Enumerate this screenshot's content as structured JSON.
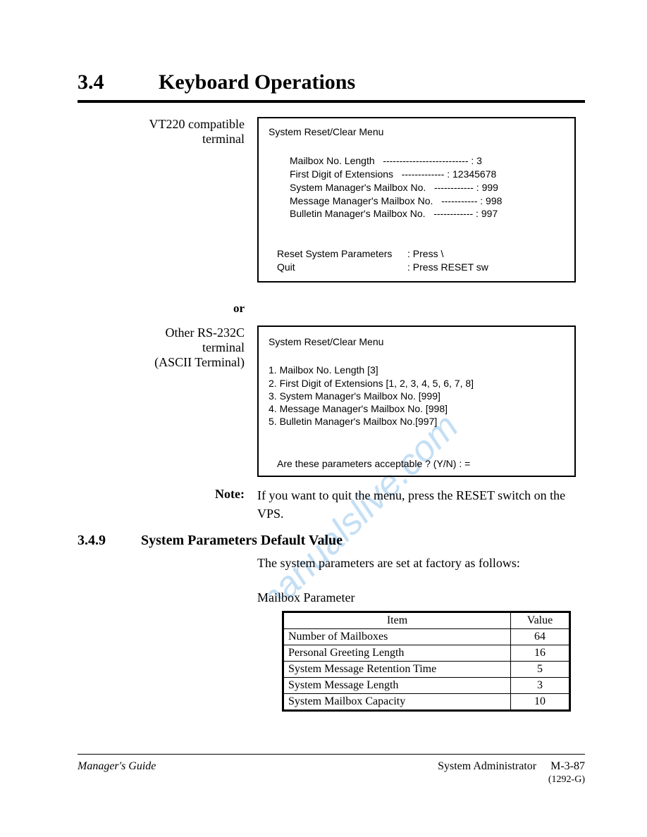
{
  "heading": {
    "number": "3.4",
    "title": "Keyboard Operations"
  },
  "section1": {
    "label": "VT220 compatible\nterminal",
    "menu": {
      "title": "System Reset/Clear Menu",
      "params": [
        {
          "label": "Mailbox No. Length",
          "dashes": "--------------------------",
          "value": "3"
        },
        {
          "label": "First Digit of Extensions",
          "dashes": "-------------",
          "value": "12345678"
        },
        {
          "label": "System Manager's Mailbox No.",
          "dashes": "------------",
          "value": "999"
        },
        {
          "label": "Message Manager's Mailbox No.",
          "dashes": "-----------",
          "value": "998"
        },
        {
          "label": "Bulletin Manager's Mailbox No.",
          "dashes": "------------",
          "value": "997"
        }
      ],
      "footer": [
        {
          "label": "Reset System Parameters",
          "value": ": Press \\"
        },
        {
          "label": "Quit",
          "value": ": Press RESET sw"
        }
      ]
    }
  },
  "or": "or",
  "section2": {
    "label": "Other RS-232C\nterminal\n(ASCII Terminal)",
    "menu": {
      "title": "System Reset/Clear Menu",
      "items": [
        "1. Mailbox No. Length [3]",
        "2. First Digit of Extensions [1, 2, 3, 4, 5, 6, 7, 8]",
        "3. System Manager's Mailbox No. [999]",
        "4. Message Manager's Mailbox No. [998]",
        "5. Bulletin Manager's Mailbox No.[997]"
      ],
      "prompt": "Are these parameters acceptable ? (Y/N) : ="
    }
  },
  "note": {
    "label": "Note:",
    "text": "If you want to quit the menu, press the RESET switch on the VPS."
  },
  "subheading": {
    "number": "3.4.9",
    "title": "System Parameters Default Value"
  },
  "body_text": "The system parameters are set at factory as follows:",
  "table": {
    "label": "Mailbox Parameter",
    "columns": [
      "Item",
      "Value"
    ],
    "rows": [
      [
        "Number of Mailboxes",
        "64"
      ],
      [
        "Personal Greeting Length",
        "16"
      ],
      [
        "System Message Retention Time",
        "5"
      ],
      [
        "System Message Length",
        "3"
      ],
      [
        "System Mailbox Capacity",
        "10"
      ]
    ]
  },
  "footer": {
    "left": "Manager's Guide",
    "right1": "System Administrator",
    "right2": "M-3-87",
    "right3": "(1292-G)"
  }
}
